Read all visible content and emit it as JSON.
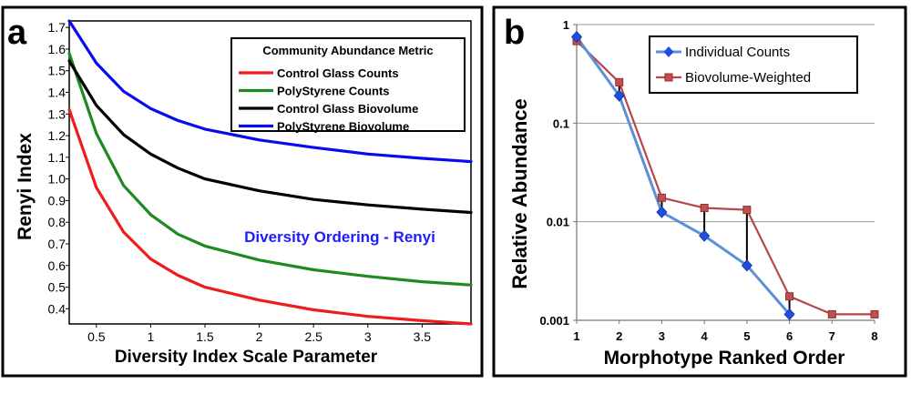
{
  "chart_data": [
    {
      "type": "line",
      "panel_label": "a",
      "xlabel": "Diversity Index Scale Parameter",
      "ylabel": "Renyi Index",
      "xlim": [
        0.25,
        3.95
      ],
      "ylim": [
        0.33,
        1.73
      ],
      "x_ticks": [
        "0.5",
        "1",
        "1.5",
        "2",
        "2.5",
        "3",
        "3.5"
      ],
      "y_ticks": [
        "1.7",
        "1.6",
        "1.5",
        "1.4",
        "1.3",
        "1.2",
        "1.1",
        "1.0",
        "0.9",
        "0.8",
        "0.7",
        "0.6",
        "0.5",
        "0.4"
      ],
      "legend_title": "Community Abundance Metric",
      "annotation": "Diversity Ordering - Renyi",
      "x": [
        0.25,
        0.5,
        0.75,
        1.0,
        1.25,
        1.5,
        2.0,
        2.5,
        3.0,
        3.5,
        3.95
      ],
      "series": [
        {
          "name": "Control Glass Counts",
          "color": "#ee1c1c",
          "values": [
            1.32,
            0.96,
            0.755,
            0.63,
            0.555,
            0.5,
            0.44,
            0.395,
            0.365,
            0.345,
            0.33
          ]
        },
        {
          "name": "PolyStyrene Counts",
          "color": "#1f8a1f",
          "values": [
            1.58,
            1.21,
            0.97,
            0.835,
            0.745,
            0.69,
            0.625,
            0.58,
            0.55,
            0.525,
            0.51
          ]
        },
        {
          "name": "Control Glass Biovolume",
          "color": "#000000",
          "values": [
            1.545,
            1.34,
            1.205,
            1.115,
            1.05,
            1.0,
            0.945,
            0.905,
            0.88,
            0.86,
            0.845
          ]
        },
        {
          "name": "PolyStyrene Biovolume",
          "color": "#0a0aee",
          "values": [
            1.73,
            1.535,
            1.405,
            1.325,
            1.27,
            1.23,
            1.18,
            1.145,
            1.115,
            1.095,
            1.08
          ]
        }
      ]
    },
    {
      "type": "line",
      "panel_label": "b",
      "xlabel": "Morphotype Ranked Order",
      "ylabel": "Relative Abundance",
      "yscale": "log",
      "xlim": [
        1,
        8
      ],
      "ylim": [
        0.001,
        1
      ],
      "x_ticks": [
        "1",
        "2",
        "3",
        "4",
        "5",
        "6",
        "7",
        "8"
      ],
      "y_ticks": [
        "1",
        "0.1",
        "0.01",
        "0.001"
      ],
      "series": [
        {
          "name": "Individual Counts",
          "color": "#1f5fbf",
          "marker": "diamond",
          "x": [
            1,
            2,
            3,
            4,
            5,
            6
          ],
          "values": [
            0.75,
            0.19,
            0.0125,
            0.0072,
            0.0036,
            0.00115
          ]
        },
        {
          "name": "Biovolume-Weighted",
          "color": "#b5474b",
          "marker": "square",
          "x": [
            1,
            2,
            3,
            4,
            5,
            6,
            7,
            8
          ],
          "values": [
            0.68,
            0.26,
            0.0175,
            0.0138,
            0.0132,
            0.00175,
            0.00115,
            0.00115
          ]
        }
      ]
    }
  ]
}
